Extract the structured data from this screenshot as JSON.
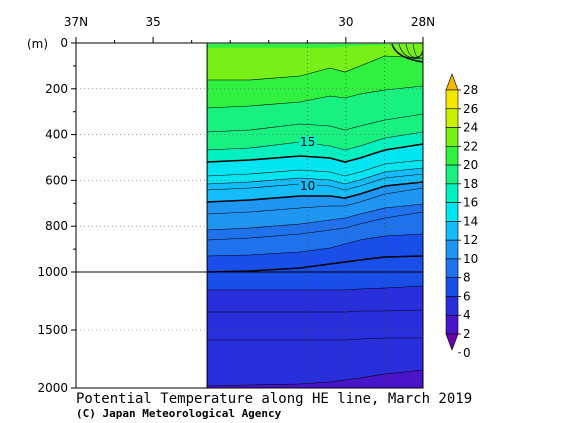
{
  "chart_data": {
    "type": "heatmap",
    "title": "Potential Temperature along HE line, March 2019",
    "credit": "(C) Japan Meteorological Agency",
    "ylabel": "(m)",
    "x_ticks": [
      "37N",
      "35",
      "30",
      "28N"
    ],
    "y_ticks_upper": [
      "0",
      "200",
      "400",
      "600",
      "800",
      "1000"
    ],
    "y_ticks_lower": [
      "1500",
      "2000"
    ],
    "colorbar_labels": [
      "28",
      "26",
      "24",
      "22",
      "20",
      "18",
      "16",
      "14",
      "12",
      "10",
      "8",
      "6",
      "4",
      "2",
      "0"
    ],
    "colorbar_colors": [
      "#6a00a8",
      "#4815c8",
      "#2a2fdc",
      "#1a4ee8",
      "#1f72ec",
      "#1f96f2",
      "#14bdfa",
      "#00e5f0",
      "#00f0c0",
      "#18f080",
      "#30f040",
      "#78f018",
      "#c8f000",
      "#f5e800",
      "#f5b800"
    ],
    "contour_labels": [
      "15",
      "10"
    ],
    "data_start_lat": 33.6,
    "upper_depth_range": [
      0,
      1000
    ],
    "lower_depth_range": [
      1000,
      2000
    ],
    "layers": [
      {
        "temp": "≥19",
        "color": "#30f040"
      },
      {
        "temp": "18–19",
        "color": "#78f018"
      },
      {
        "temp": "17–18",
        "color": "#30f040"
      },
      {
        "temp": "16–17",
        "color": "#18f080"
      },
      {
        "temp": "15–16",
        "color": "#18f080"
      },
      {
        "temp": "14–15",
        "color": "#00f0c0"
      },
      {
        "temp": "13–14",
        "color": "#00e5f0"
      },
      {
        "temp": "12–13",
        "color": "#00e5f0"
      },
      {
        "temp": "11–12",
        "color": "#14bdfa"
      },
      {
        "temp": "10–11",
        "color": "#14bdfa"
      },
      {
        "temp": "9–10",
        "color": "#1f96f2"
      },
      {
        "temp": "8–9",
        "color": "#1f96f2"
      },
      {
        "temp": "7–8",
        "color": "#1f72ec"
      },
      {
        "temp": "6–7",
        "color": "#1f72ec"
      },
      {
        "temp": "5–6",
        "color": "#1a4ee8"
      },
      {
        "temp": "4–5",
        "color": "#1a4ee8"
      },
      {
        "temp": "3–4",
        "color": "#2a2fdc"
      },
      {
        "temp": "2–3",
        "color": "#2a2fdc"
      },
      {
        "temp": "1–2",
        "color": "#2a2fdc"
      },
      {
        "temp": "0–1",
        "color": "#4815c8"
      }
    ]
  }
}
